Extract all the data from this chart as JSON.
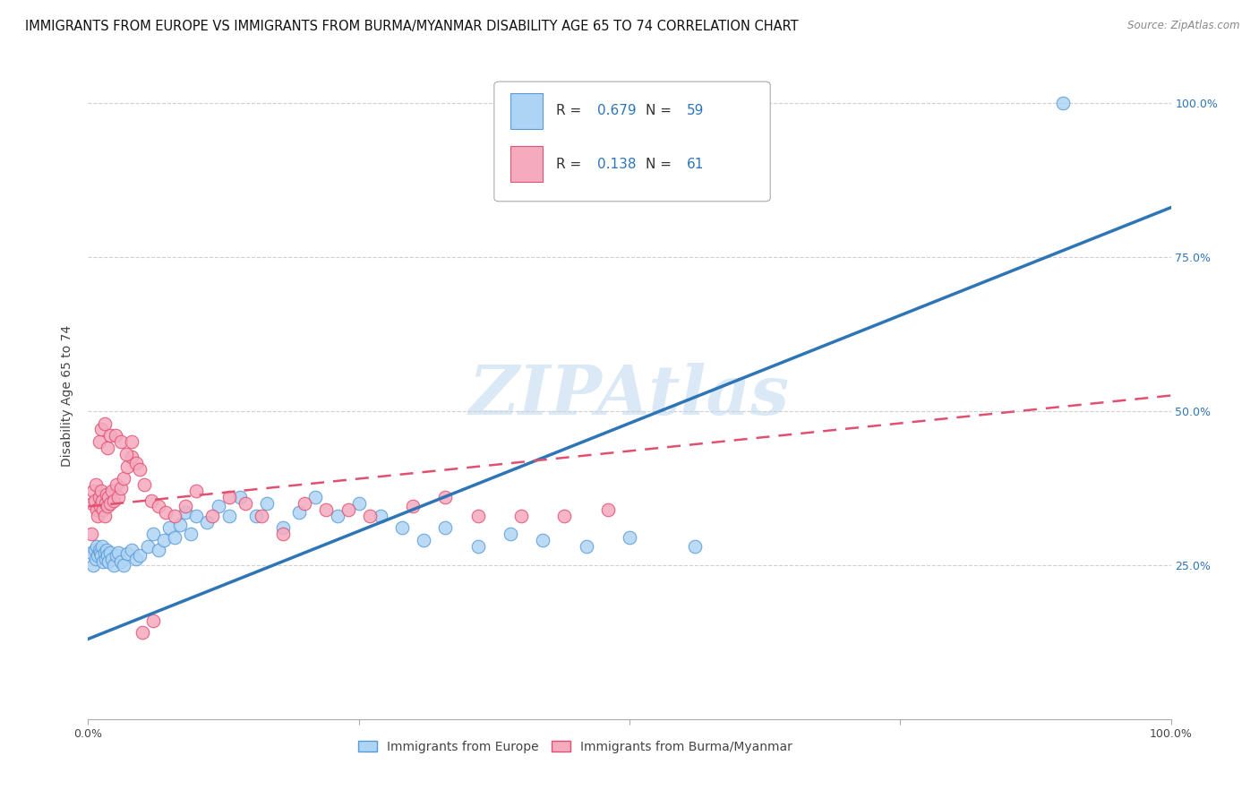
{
  "title": "IMMIGRANTS FROM EUROPE VS IMMIGRANTS FROM BURMA/MYANMAR DISABILITY AGE 65 TO 74 CORRELATION CHART",
  "source": "Source: ZipAtlas.com",
  "ylabel": "Disability Age 65 to 74",
  "xlim": [
    0.0,
    1.0
  ],
  "ylim": [
    0.0,
    1.05
  ],
  "xtick_labels": [
    "0.0%",
    "",
    "",
    "",
    "100.0%"
  ],
  "xtick_positions": [
    0.0,
    0.25,
    0.5,
    0.75,
    1.0
  ],
  "ytick_labels": [
    "25.0%",
    "50.0%",
    "75.0%",
    "100.0%"
  ],
  "ytick_positions": [
    0.25,
    0.5,
    0.75,
    1.0
  ],
  "right_ytick_labels": [
    "25.0%",
    "50.0%",
    "75.0%",
    "100.0%"
  ],
  "right_ytick_positions": [
    0.25,
    0.5,
    0.75,
    1.0
  ],
  "series1_color": "#AED4F5",
  "series1_edge_color": "#5B9BD5",
  "series1_label": "Immigrants from Europe",
  "series1_R": "0.679",
  "series1_N": "59",
  "series1_line_color": "#2E75B6",
  "series2_color": "#F5AABE",
  "series2_edge_color": "#E05070",
  "series2_label": "Immigrants from Burma/Myanmar",
  "series2_R": "0.138",
  "series2_N": "61",
  "series2_line_color": "#E05070",
  "watermark": "ZIPAtlas",
  "background_color": "#ffffff",
  "grid_color": "#d0d0d0",
  "title_fontsize": 10.5,
  "axis_label_fontsize": 10,
  "tick_fontsize": 9,
  "series1_x": [
    0.003,
    0.005,
    0.006,
    0.007,
    0.008,
    0.009,
    0.01,
    0.011,
    0.012,
    0.013,
    0.014,
    0.015,
    0.016,
    0.017,
    0.018,
    0.019,
    0.02,
    0.022,
    0.024,
    0.026,
    0.028,
    0.03,
    0.033,
    0.036,
    0.04,
    0.044,
    0.048,
    0.055,
    0.06,
    0.065,
    0.07,
    0.075,
    0.08,
    0.085,
    0.09,
    0.095,
    0.1,
    0.11,
    0.12,
    0.13,
    0.14,
    0.155,
    0.165,
    0.18,
    0.195,
    0.21,
    0.23,
    0.25,
    0.27,
    0.29,
    0.31,
    0.33,
    0.36,
    0.39,
    0.42,
    0.46,
    0.5,
    0.56,
    0.9
  ],
  "series1_y": [
    0.27,
    0.25,
    0.275,
    0.26,
    0.28,
    0.265,
    0.275,
    0.27,
    0.265,
    0.28,
    0.255,
    0.27,
    0.26,
    0.275,
    0.265,
    0.255,
    0.27,
    0.26,
    0.25,
    0.265,
    0.27,
    0.255,
    0.25,
    0.268,
    0.275,
    0.26,
    0.265,
    0.28,
    0.3,
    0.275,
    0.29,
    0.31,
    0.295,
    0.315,
    0.335,
    0.3,
    0.33,
    0.32,
    0.345,
    0.33,
    0.36,
    0.33,
    0.35,
    0.31,
    0.335,
    0.36,
    0.33,
    0.35,
    0.33,
    0.31,
    0.29,
    0.31,
    0.28,
    0.3,
    0.29,
    0.28,
    0.295,
    0.28,
    1.0
  ],
  "series2_x": [
    0.003,
    0.004,
    0.005,
    0.006,
    0.007,
    0.008,
    0.009,
    0.01,
    0.011,
    0.012,
    0.013,
    0.014,
    0.015,
    0.016,
    0.017,
    0.018,
    0.019,
    0.02,
    0.022,
    0.024,
    0.026,
    0.028,
    0.03,
    0.033,
    0.036,
    0.04,
    0.044,
    0.048,
    0.052,
    0.058,
    0.065,
    0.072,
    0.08,
    0.09,
    0.1,
    0.115,
    0.13,
    0.145,
    0.16,
    0.18,
    0.2,
    0.22,
    0.24,
    0.26,
    0.3,
    0.33,
    0.36,
    0.4,
    0.44,
    0.48,
    0.01,
    0.012,
    0.015,
    0.018,
    0.02,
    0.025,
    0.03,
    0.035,
    0.04,
    0.05,
    0.06
  ],
  "series2_y": [
    0.3,
    0.35,
    0.37,
    0.355,
    0.38,
    0.34,
    0.33,
    0.36,
    0.345,
    0.37,
    0.355,
    0.34,
    0.33,
    0.35,
    0.365,
    0.345,
    0.36,
    0.35,
    0.37,
    0.355,
    0.38,
    0.36,
    0.375,
    0.39,
    0.41,
    0.425,
    0.415,
    0.405,
    0.38,
    0.355,
    0.345,
    0.335,
    0.33,
    0.345,
    0.37,
    0.33,
    0.36,
    0.35,
    0.33,
    0.3,
    0.35,
    0.34,
    0.34,
    0.33,
    0.345,
    0.36,
    0.33,
    0.33,
    0.33,
    0.34,
    0.45,
    0.47,
    0.48,
    0.44,
    0.46,
    0.46,
    0.45,
    0.43,
    0.45,
    0.14,
    0.16
  ]
}
